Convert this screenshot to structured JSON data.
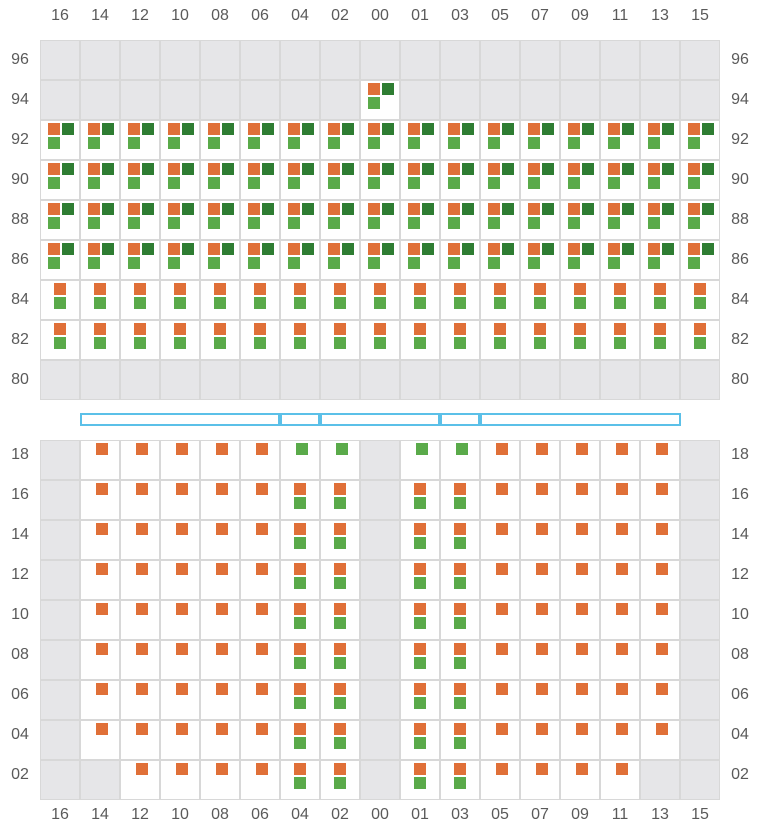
{
  "colors": {
    "orange": "#e07038",
    "light_green": "#5aaa4a",
    "dark_green": "#2e7d32",
    "empty_cell": "#e6e6e8",
    "cell_border": "#d8d8d8",
    "bridge": "#5bc0e8",
    "label": "#5a5a5a"
  },
  "column_labels": [
    "16",
    "14",
    "12",
    "10",
    "08",
    "06",
    "04",
    "02",
    "00",
    "01",
    "03",
    "05",
    "07",
    "09",
    "11",
    "13",
    "15"
  ],
  "upper_block": {
    "row_labels": [
      "96",
      "94",
      "92",
      "90",
      "88",
      "86",
      "84",
      "82",
      "80"
    ],
    "rows": [
      {
        "label": "96",
        "pattern": "empty",
        "exceptions": {}
      },
      {
        "label": "94",
        "pattern": "empty",
        "exceptions": {
          "00": "triple"
        }
      },
      {
        "label": "92",
        "pattern": "triple",
        "exceptions": {}
      },
      {
        "label": "90",
        "pattern": "triple",
        "exceptions": {}
      },
      {
        "label": "88",
        "pattern": "triple",
        "exceptions": {}
      },
      {
        "label": "86",
        "pattern": "triple",
        "exceptions": {}
      },
      {
        "label": "84",
        "pattern": "pair",
        "exceptions": {}
      },
      {
        "label": "82",
        "pattern": "pair",
        "exceptions": {}
      },
      {
        "label": "80",
        "pattern": "empty",
        "exceptions": {}
      }
    ]
  },
  "lower_block": {
    "row_labels": [
      "18",
      "16",
      "14",
      "12",
      "10",
      "08",
      "06",
      "04",
      "02"
    ],
    "rows": [
      {
        "label": "18",
        "cells": [
          "empty",
          "orange",
          "orange",
          "orange",
          "orange",
          "orange",
          "green",
          "green",
          "empty",
          "green",
          "green",
          "orange",
          "orange",
          "orange",
          "orange",
          "orange",
          "empty"
        ]
      },
      {
        "label": "16",
        "cells": [
          "empty",
          "orange",
          "orange",
          "orange",
          "orange",
          "orange",
          "pair",
          "pair",
          "empty",
          "pair",
          "pair",
          "orange",
          "orange",
          "orange",
          "orange",
          "orange",
          "empty"
        ]
      },
      {
        "label": "14",
        "cells": [
          "empty",
          "orange",
          "orange",
          "orange",
          "orange",
          "orange",
          "pair",
          "pair",
          "empty",
          "pair",
          "pair",
          "orange",
          "orange",
          "orange",
          "orange",
          "orange",
          "empty"
        ]
      },
      {
        "label": "12",
        "cells": [
          "empty",
          "orange",
          "orange",
          "orange",
          "orange",
          "orange",
          "pair",
          "pair",
          "empty",
          "pair",
          "pair",
          "orange",
          "orange",
          "orange",
          "orange",
          "orange",
          "empty"
        ]
      },
      {
        "label": "10",
        "cells": [
          "empty",
          "orange",
          "orange",
          "orange",
          "orange",
          "orange",
          "pair",
          "pair",
          "empty",
          "pair",
          "pair",
          "orange",
          "orange",
          "orange",
          "orange",
          "orange",
          "empty"
        ]
      },
      {
        "label": "08",
        "cells": [
          "empty",
          "orange",
          "orange",
          "orange",
          "orange",
          "orange",
          "pair",
          "pair",
          "empty",
          "pair",
          "pair",
          "orange",
          "orange",
          "orange",
          "orange",
          "orange",
          "empty"
        ]
      },
      {
        "label": "06",
        "cells": [
          "empty",
          "orange",
          "orange",
          "orange",
          "orange",
          "orange",
          "pair",
          "pair",
          "empty",
          "pair",
          "pair",
          "orange",
          "orange",
          "orange",
          "orange",
          "orange",
          "empty"
        ]
      },
      {
        "label": "04",
        "cells": [
          "empty",
          "orange",
          "orange",
          "orange",
          "orange",
          "orange",
          "pair",
          "pair",
          "empty",
          "pair",
          "pair",
          "orange",
          "orange",
          "orange",
          "orange",
          "orange",
          "empty"
        ]
      },
      {
        "label": "02",
        "cells": [
          "empty",
          "empty",
          "orange",
          "orange",
          "orange",
          "orange",
          "pair",
          "pair",
          "empty",
          "pair",
          "pair",
          "orange",
          "orange",
          "orange",
          "orange",
          "empty",
          "empty"
        ]
      }
    ]
  }
}
